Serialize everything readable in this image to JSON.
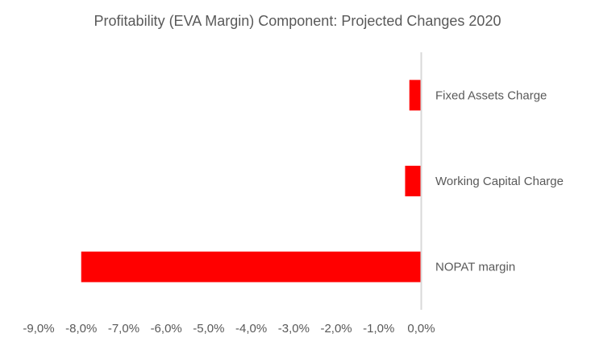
{
  "chart_data": {
    "type": "bar",
    "orientation": "horizontal",
    "title": "Profitability (EVA Margin) Component: Projected Changes 2020",
    "categories": [
      "Fixed Assets Charge",
      "Working Capital Charge",
      "NOPAT margin"
    ],
    "values": [
      -0.28,
      -0.38,
      -8.0
    ],
    "unit": "%",
    "xlim": [
      -9,
      0
    ],
    "ticks": [
      "-9,0%",
      "-8,0%",
      "-7,0%",
      "-6,0%",
      "-5,0%",
      "-4,0%",
      "-3,0%",
      "-2,0%",
      "-1,0%",
      "0,0%"
    ],
    "tick_values": [
      -9,
      -8,
      -7,
      -6,
      -5,
      -4,
      -3,
      -2,
      -1,
      0
    ],
    "grid": false,
    "legend": "none",
    "bar_color": "#FF0000",
    "axis_color": "#D9D9D9"
  }
}
